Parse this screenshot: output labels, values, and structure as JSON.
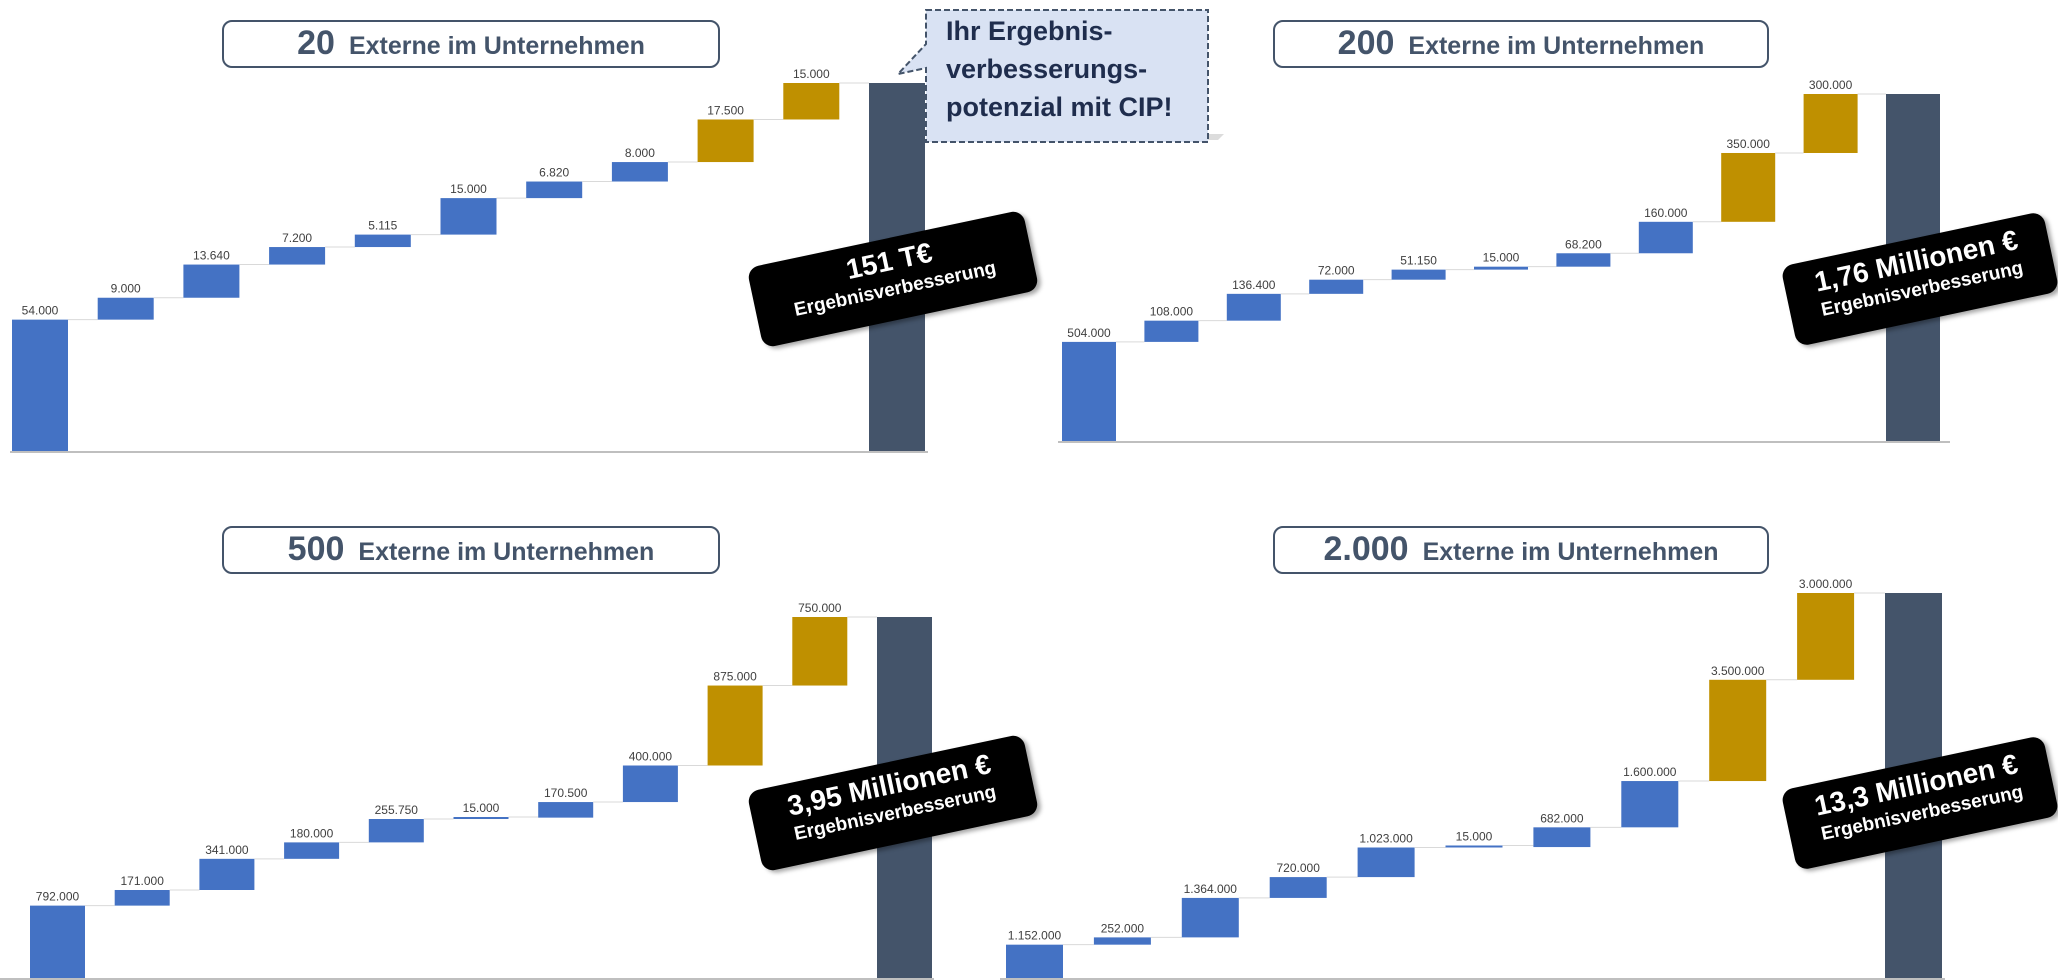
{
  "callout": {
    "lines": [
      "Ihr Ergebnis-",
      "verbesserungs-",
      "potenzial mit CIP!"
    ]
  },
  "colors": {
    "increase": "#4472c4",
    "cip": "#bf9000",
    "total": "#44546a",
    "title": "#44546a"
  },
  "chart_data": [
    {
      "type": "bar",
      "title": {
        "number": "20",
        "text": "Externe im Unternehmen"
      },
      "labels": [
        "54.000",
        "9.000",
        "13.640",
        "7.200",
        "5.115",
        "15.000",
        "6.820",
        "8.000",
        "17.500",
        "15.000"
      ],
      "values": [
        54000,
        9000,
        13640,
        7200,
        5115,
        15000,
        6820,
        8000,
        17500,
        15000
      ],
      "kinds": [
        "base",
        "inc",
        "inc",
        "inc",
        "inc",
        "inc",
        "inc",
        "inc",
        "cip",
        "cip"
      ],
      "total": 151275,
      "badge": {
        "line1": "151 T€",
        "line2": "Ergebnisverbesserung"
      }
    },
    {
      "type": "bar",
      "title": {
        "number": "200",
        "text": "Externe im Unternehmen"
      },
      "labels": [
        "504.000",
        "108.000",
        "136.400",
        "72.000",
        "51.150",
        "15.000",
        "68.200",
        "160.000",
        "350.000",
        "300.000"
      ],
      "values": [
        504000,
        108000,
        136400,
        72000,
        51150,
        15000,
        68200,
        160000,
        350000,
        300000
      ],
      "kinds": [
        "base",
        "inc",
        "inc",
        "inc",
        "inc",
        "inc",
        "inc",
        "inc",
        "cip",
        "cip"
      ],
      "total": 1764750,
      "badge": {
        "line1": "1,76 Millionen €",
        "line2": "Ergebnisverbesserung"
      }
    },
    {
      "type": "bar",
      "title": {
        "number": "500",
        "text": "Externe im Unternehmen"
      },
      "labels": [
        "792.000",
        "171.000",
        "341.000",
        "180.000",
        "255.750",
        "15.000",
        "170.500",
        "400.000",
        "875.000",
        "750.000"
      ],
      "values": [
        792000,
        171000,
        341000,
        180000,
        255750,
        15000,
        170500,
        400000,
        875000,
        750000
      ],
      "kinds": [
        "base",
        "inc",
        "inc",
        "inc",
        "inc",
        "inc",
        "inc",
        "inc",
        "cip",
        "cip"
      ],
      "total": 3950250,
      "badge": {
        "line1": "3,95 Millionen €",
        "line2": "Ergebnisverbesserung"
      }
    },
    {
      "type": "bar",
      "title": {
        "number": "2.000",
        "text": "Externe im Unternehmen"
      },
      "labels": [
        "1.152.000",
        "252.000",
        "1.364.000",
        "720.000",
        "1.023.000",
        "15.000",
        "682.000",
        "1.600.000",
        "3.500.000",
        "3.000.000"
      ],
      "values": [
        1152000,
        252000,
        1364000,
        720000,
        1023000,
        15000,
        682000,
        1600000,
        3500000,
        3000000
      ],
      "kinds": [
        "base",
        "inc",
        "inc",
        "inc",
        "inc",
        "inc",
        "inc",
        "inc",
        "cip",
        "cip"
      ],
      "total": 13308000,
      "badge": {
        "line1": "13,3 Millionen €",
        "line2": "Ergebnisverbesserung"
      }
    }
  ]
}
